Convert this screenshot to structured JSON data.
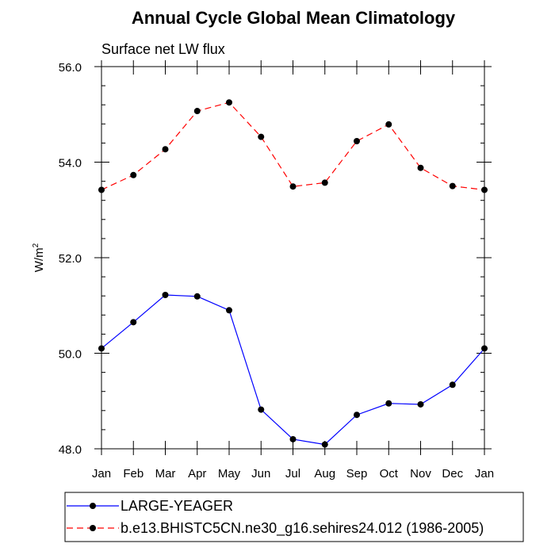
{
  "chart_data": {
    "type": "line",
    "title": "Annual Cycle Global Mean Climatology",
    "subtitle": "Surface net LW flux",
    "xlabel": "",
    "ylabel": {
      "base": "W/m",
      "superscript": "2"
    },
    "categories": [
      "Jan",
      "Feb",
      "Mar",
      "Apr",
      "May",
      "Jun",
      "Jul",
      "Aug",
      "Sep",
      "Oct",
      "Nov",
      "Dec",
      "Jan"
    ],
    "ylim": [
      48.0,
      56.0
    ],
    "y_major_ticks": [
      48.0,
      50.0,
      52.0,
      54.0,
      56.0
    ],
    "y_major_tick_labels": [
      "48.0",
      "50.0",
      "52.0",
      "54.0",
      "56.0"
    ],
    "y_minor_step": 0.4,
    "grid": false,
    "legend_position": "bottom",
    "series": [
      {
        "name": "LARGE-YEAGER",
        "color": "#0000ff",
        "line_style": "solid",
        "marker": "filled-circle",
        "values": [
          50.1,
          50.65,
          51.22,
          51.19,
          50.9,
          48.82,
          48.2,
          48.09,
          48.71,
          48.95,
          48.93,
          49.34,
          50.1
        ]
      },
      {
        "name": "b.e13.BHISTC5CN.ne30_g16.sehires24.012 (1986-2005)",
        "color": "#ff0000",
        "line_style": "dashed",
        "marker": "filled-circle",
        "values": [
          53.42,
          53.73,
          54.27,
          55.07,
          55.25,
          54.53,
          53.49,
          53.57,
          54.44,
          54.79,
          53.88,
          53.5,
          53.42
        ]
      }
    ]
  }
}
